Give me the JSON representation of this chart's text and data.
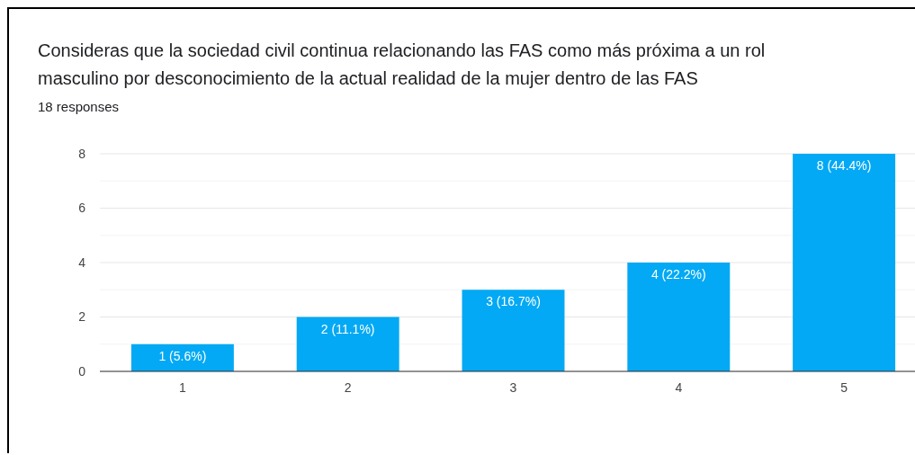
{
  "chart_data": {
    "type": "bar",
    "title": "Consideras que la sociedad civil continua relacionando las FAS como más próxima a un rol masculino por desconocimiento de la actual realidad de la mujer dentro de las FAS",
    "subtitle": "18 responses",
    "categories": [
      "1",
      "2",
      "3",
      "4",
      "5"
    ],
    "values": [
      1,
      2,
      3,
      4,
      8
    ],
    "value_labels": [
      "1 (5.6%)",
      "2 (11.1%)",
      "3 (16.7%)",
      "4 (22.2%)",
      "8 (44.4%)"
    ],
    "color": "#03a9f4",
    "ylim": [
      0,
      8
    ],
    "yticks": [
      0,
      {
        "value": 1,
        "label": null
      },
      2,
      {
        "value": 3,
        "label": null
      },
      4,
      {
        "value": 5,
        "label": null
      },
      6,
      {
        "value": 7,
        "label": null
      },
      8
    ],
    "grid": "y"
  }
}
